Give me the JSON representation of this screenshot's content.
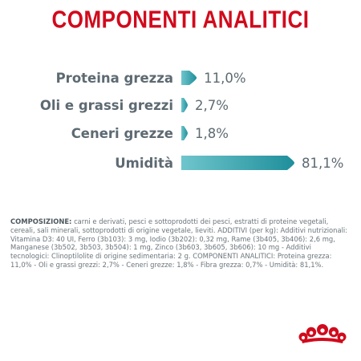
{
  "title": "COMPONENTI ANALITICI",
  "colors": {
    "title": "#d10a1c",
    "bar_start": "#6fc5cc",
    "bar_end": "#1f8f9b",
    "label": "#5d6a72",
    "logo": "#d10a1c"
  },
  "chart_data": {
    "type": "bar",
    "orientation": "horizontal",
    "categories": [
      "Proteina grezza",
      "Oli e grassi grezzi",
      "Ceneri grezze",
      "Umidità"
    ],
    "values": [
      11.0,
      2.7,
      1.8,
      81.1
    ],
    "value_labels": [
      "11,0%",
      "2,7%",
      "1,8%",
      "81,1%"
    ],
    "unit": "%",
    "xlim": [
      0,
      81.1
    ]
  },
  "composition": {
    "heading": "COMPOSIZIONE:",
    "body": " carni e derivati, pesci e sottoprodotti dei pesci, estratti di proteine vegetali, cereali, sali minerali, sottoprodotti di origine vegetale, lieviti. ADDITIVI (per kg): Additivi nutrizionali: Vitamina D3: 40 UI, Ferro (3b103): 3 mg, Iodio (3b202): 0,32 mg, Rame (3b405, 3b406): 2,6 mg, Manganese (3b502, 3b503, 3b504): 1 mg, Zinco (3b603, 3b605, 3b606): 10 mg - Additivi tecnologici: Clinoptilolite di origine sedimentaria: 2 g. COMPONENTI ANALITICI: Proteina grezza: 11,0% - Oli e grassi grezzi: 2,7% - Ceneri grezze: 1,8% - Fibra grezza: 0,7% - Umidità: 81,1%."
  },
  "logo": {
    "icon": "royal-canin-crown-icon"
  }
}
